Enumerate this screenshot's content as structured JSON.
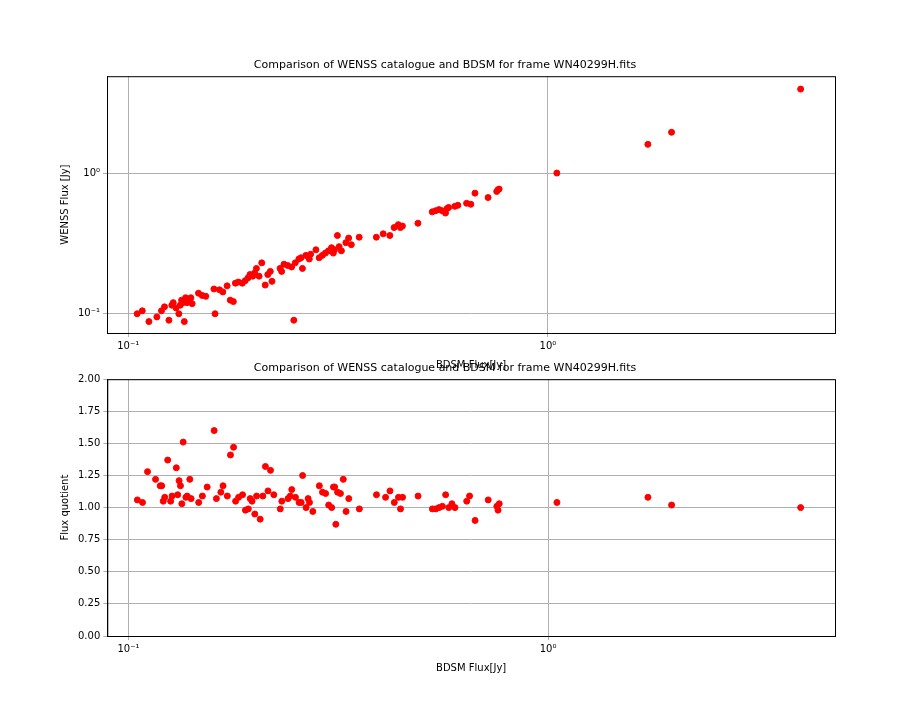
{
  "chart_data": [
    {
      "type": "scatter",
      "title": "Comparison of WENSS catalogue and BDSM for frame WN40299H.fits",
      "x_label": "BDSM Flux[Jy]",
      "y_label": "WENSS Flux [Jy]",
      "color": "#ff0000",
      "marker": "circle",
      "log": true,
      "grid": true,
      "xlim": [
        0.089,
        4.83
      ],
      "ylim": [
        0.073,
        4.88
      ],
      "xticks": [
        {
          "value": 0.1,
          "label": "10⁻¹"
        },
        {
          "value": 1,
          "label": "10⁰"
        }
      ],
      "yticks": [
        {
          "value": 0.1,
          "label": "10⁻¹"
        },
        {
          "value": 1,
          "label": "10⁰"
        }
      ],
      "x": [
        0.105,
        0.108,
        0.112,
        0.117,
        0.12,
        0.122,
        0.125,
        0.127,
        0.128,
        0.13,
        0.132,
        0.133,
        0.134,
        0.135,
        0.136,
        0.137,
        0.138,
        0.14,
        0.141,
        0.142,
        0.147,
        0.15,
        0.153,
        0.16,
        0.161,
        0.165,
        0.168,
        0.172,
        0.175,
        0.178,
        0.18,
        0.183,
        0.187,
        0.19,
        0.193,
        0.195,
        0.198,
        0.2,
        0.202,
        0.205,
        0.208,
        0.212,
        0.215,
        0.218,
        0.22,
        0.23,
        0.232,
        0.235,
        0.24,
        0.245,
        0.248,
        0.25,
        0.255,
        0.258,
        0.26,
        0.265,
        0.268,
        0.27,
        0.272,
        0.28,
        0.285,
        0.29,
        0.295,
        0.3,
        0.305,
        0.308,
        0.31,
        0.315,
        0.318,
        0.322,
        0.33,
        0.335,
        0.34,
        0.355,
        0.39,
        0.405,
        0.42,
        0.43,
        0.44,
        0.445,
        0.45,
        0.49,
        0.53,
        0.54,
        0.55,
        0.56,
        0.57,
        0.575,
        0.58,
        0.6,
        0.61,
        0.64,
        0.655,
        0.67,
        0.72,
        0.755,
        0.76,
        0.765,
        1.05,
        1.73,
        1.97,
        4.0
      ],
      "values": [
        0.1,
        0.105,
        0.088,
        0.095,
        0.105,
        0.112,
        0.09,
        0.115,
        0.12,
        0.11,
        0.1,
        0.115,
        0.125,
        0.12,
        0.088,
        0.13,
        0.12,
        0.125,
        0.13,
        0.118,
        0.14,
        0.135,
        0.133,
        0.15,
        0.1,
        0.148,
        0.143,
        0.158,
        0.125,
        0.122,
        0.165,
        0.168,
        0.165,
        0.172,
        0.18,
        0.19,
        0.185,
        0.195,
        0.21,
        0.185,
        0.23,
        0.16,
        0.19,
        0.2,
        0.17,
        0.21,
        0.2,
        0.225,
        0.22,
        0.215,
        0.09,
        0.23,
        0.245,
        0.25,
        0.21,
        0.26,
        0.255,
        0.245,
        0.265,
        0.285,
        0.25,
        0.26,
        0.27,
        0.28,
        0.295,
        0.27,
        0.285,
        0.36,
        0.3,
        0.28,
        0.32,
        0.345,
        0.31,
        0.35,
        0.35,
        0.37,
        0.36,
        0.41,
        0.43,
        0.41,
        0.42,
        0.44,
        0.53,
        0.54,
        0.55,
        0.54,
        0.52,
        0.56,
        0.57,
        0.58,
        0.59,
        0.61,
        0.6,
        0.72,
        0.67,
        0.74,
        0.76,
        0.77,
        1.0,
        1.6,
        1.95,
        3.95
      ]
    },
    {
      "type": "scatter",
      "title": "Comparison of WENSS catalogue and BDSM for frame WN40299H.fits",
      "x_label": "BDSM Flux[Jy]",
      "y_label": "Flux quotient",
      "color": "#ff0000",
      "marker": "circle",
      "log": "x",
      "grid": true,
      "xlim": [
        0.089,
        4.83
      ],
      "ylim": [
        0,
        2
      ],
      "xticks": [
        {
          "value": 0.1,
          "label": "10⁻¹"
        },
        {
          "value": 1,
          "label": "10⁰"
        }
      ],
      "yticks": [
        {
          "value": 0,
          "label": "0.00"
        },
        {
          "value": 0.25,
          "label": "0.25"
        },
        {
          "value": 0.5,
          "label": "0.50"
        },
        {
          "value": 0.75,
          "label": "0.75"
        },
        {
          "value": 1,
          "label": "1.00"
        },
        {
          "value": 1.25,
          "label": "1.25"
        },
        {
          "value": 1.5,
          "label": "1.50"
        },
        {
          "value": 1.75,
          "label": "1.75"
        },
        {
          "value": 2,
          "label": "2.00"
        }
      ],
      "x": [
        0.105,
        0.108,
        0.111,
        0.116,
        0.119,
        0.12,
        0.121,
        0.122,
        0.124,
        0.126,
        0.127,
        0.13,
        0.131,
        0.132,
        0.133,
        0.134,
        0.135,
        0.137,
        0.138,
        0.14,
        0.141,
        0.147,
        0.15,
        0.154,
        0.16,
        0.162,
        0.166,
        0.168,
        0.172,
        0.175,
        0.178,
        0.18,
        0.183,
        0.187,
        0.19,
        0.193,
        0.195,
        0.197,
        0.2,
        0.202,
        0.206,
        0.209,
        0.212,
        0.215,
        0.218,
        0.222,
        0.23,
        0.232,
        0.24,
        0.243,
        0.245,
        0.25,
        0.255,
        0.258,
        0.26,
        0.265,
        0.268,
        0.27,
        0.275,
        0.285,
        0.29,
        0.295,
        0.3,
        0.305,
        0.308,
        0.31,
        0.312,
        0.315,
        0.32,
        0.325,
        0.33,
        0.335,
        0.355,
        0.39,
        0.41,
        0.42,
        0.43,
        0.44,
        0.445,
        0.45,
        0.49,
        0.53,
        0.54,
        0.55,
        0.56,
        0.57,
        0.58,
        0.59,
        0.6,
        0.64,
        0.65,
        0.67,
        0.72,
        0.755,
        0.76,
        0.765,
        1.05,
        1.73,
        1.97,
        4.0
      ],
      "values": [
        1.06,
        1.04,
        1.28,
        1.22,
        1.17,
        1.17,
        1.05,
        1.08,
        1.37,
        1.05,
        1.09,
        1.31,
        1.1,
        1.21,
        1.17,
        1.03,
        1.51,
        1.08,
        1.09,
        1.22,
        1.07,
        1.04,
        1.09,
        1.16,
        1.6,
        1.07,
        1.12,
        1.17,
        1.09,
        1.41,
        1.47,
        1.05,
        1.08,
        1.1,
        0.98,
        0.99,
        1.07,
        1.05,
        0.95,
        1.09,
        0.91,
        1.09,
        1.32,
        1.13,
        1.29,
        1.1,
        0.99,
        1.05,
        1.07,
        1.09,
        1.14,
        1.08,
        1.04,
        1.04,
        1.25,
        1.0,
        1.07,
        1.04,
        0.97,
        1.17,
        1.12,
        1.11,
        1.02,
        1.0,
        1.16,
        1.16,
        0.87,
        1.12,
        1.11,
        1.22,
        0.97,
        1.07,
        0.99,
        1.1,
        1.08,
        1.13,
        1.04,
        1.08,
        0.99,
        1.08,
        1.09,
        0.99,
        0.99,
        1.0,
        1.01,
        1.1,
        1.0,
        1.03,
        1.0,
        1.05,
        1.09,
        0.9,
        1.06,
        1.01,
        0.98,
        1.03,
        1.04,
        1.08,
        1.02,
        1.0
      ]
    }
  ]
}
